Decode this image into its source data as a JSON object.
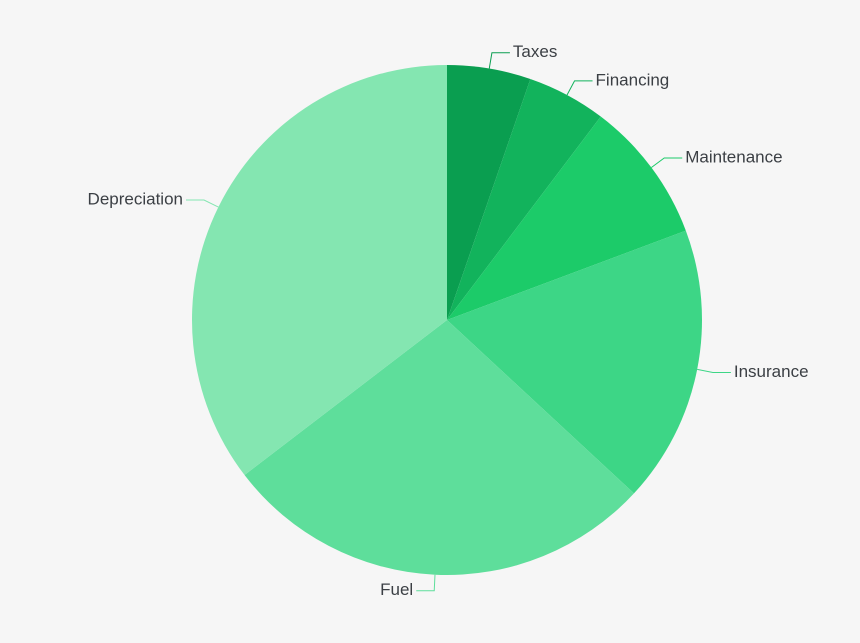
{
  "chart_data": {
    "type": "pie",
    "title": "",
    "start_angle_deg": 0,
    "direction": "clockwise",
    "slices": [
      {
        "label": "Taxes",
        "value": 5.3,
        "color": "#0a9e50"
      },
      {
        "label": "Financing",
        "value": 5.0,
        "color": "#12b35c"
      },
      {
        "label": "Maintenance",
        "value": 9.0,
        "color": "#1ccb69"
      },
      {
        "label": "Insurance",
        "value": 17.6,
        "color": "#3dd686"
      },
      {
        "label": "Fuel",
        "value": 27.7,
        "color": "#5ede9b"
      },
      {
        "label": "Depreciation",
        "value": 35.4,
        "color": "#84e6b1"
      }
    ]
  }
}
